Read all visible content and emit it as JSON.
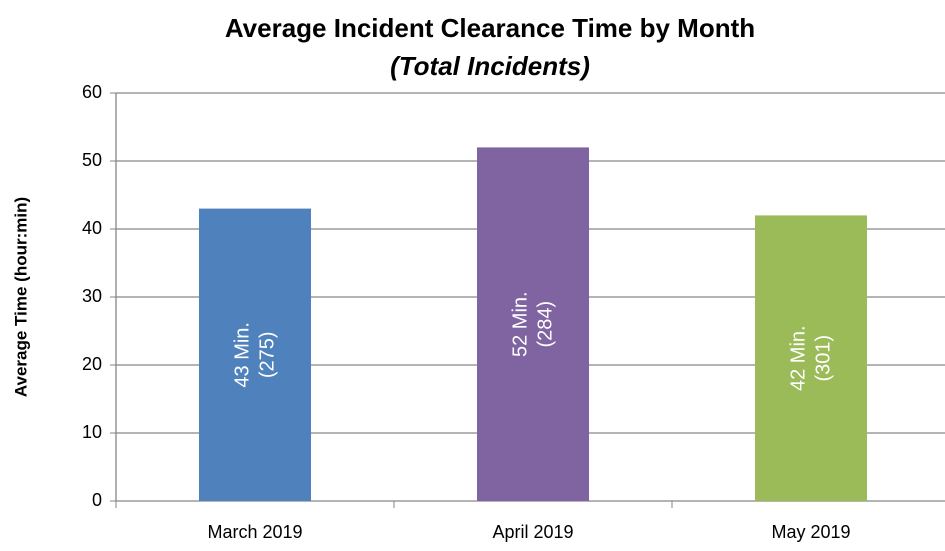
{
  "chart_data": {
    "type": "bar",
    "title": "Average Incident Clearance Time by Month",
    "subtitle": "(Total Incidents)",
    "y_label": "Average Time (hour:min)",
    "categories": [
      "March 2019",
      "April 2019",
      "May 2019"
    ],
    "values": [
      43,
      52,
      42
    ],
    "value_labels": [
      "43 Min.",
      "52 Min.",
      "42 Min."
    ],
    "count_labels": [
      "(275)",
      "(284)",
      "(301)"
    ],
    "colors": [
      "#4f81bd",
      "#8064a2",
      "#9bbb59"
    ],
    "ylim": [
      0,
      60
    ],
    "yticks": [
      0,
      10,
      20,
      30,
      40,
      50,
      60
    ],
    "grid": true
  }
}
